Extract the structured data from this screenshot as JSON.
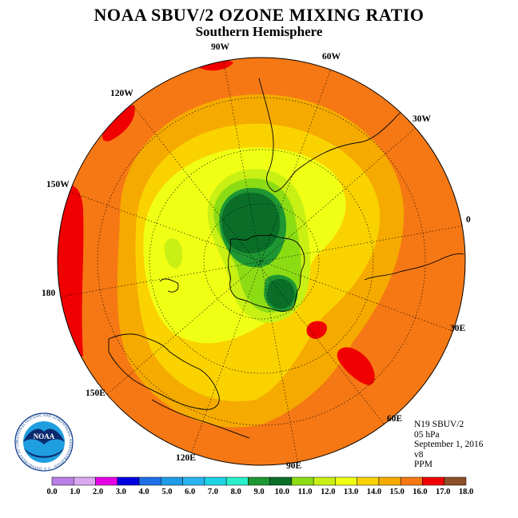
{
  "title": "NOAA SBUV/2 OZONE MIXING RATIO",
  "subtitle": "Southern Hemisphere",
  "info": {
    "satellite": "N19 SBUV/2",
    "level": "05 hPa",
    "date": "September 1, 2016",
    "version": "v8",
    "units": "PPM"
  },
  "logo": {
    "text": "NOAA",
    "ring_text": "NATIONAL OCEANIC AND ATMOSPHERIC ADMINISTRATION · U.S. DEPARTMENT OF COMMERCE"
  },
  "longitude_labels": [
    "90W",
    "60W",
    "30W",
    "0",
    "30E",
    "60E",
    "90E",
    "120E",
    "150E",
    "180",
    "150W",
    "120W"
  ],
  "colorbar": {
    "labels": [
      "0.0",
      "1.0",
      "2.0",
      "3.0",
      "4.0",
      "5.0",
      "6.0",
      "7.0",
      "8.0",
      "9.0",
      "10.0",
      "11.0",
      "12.0",
      "13.0",
      "14.0",
      "15.0",
      "16.0",
      "17.0",
      "18.0"
    ],
    "colors": [
      "#b97fe6",
      "#d9a8ee",
      "#e600e6",
      "#0000e0",
      "#1e6ee6",
      "#1e9be6",
      "#28b4f0",
      "#1ed2e6",
      "#28f0c8",
      "#1e9632",
      "#0a6e28",
      "#8cdc14",
      "#c8f014",
      "#f0ff14",
      "#fad200",
      "#f5aa00",
      "#f57814",
      "#f00000",
      "#8c5028"
    ]
  },
  "colors": {
    "orange_dark": "#f57814",
    "orange": "#f5aa00",
    "gold": "#fad200",
    "yellow": "#f0ff14",
    "yellow_green": "#c8f014",
    "light_green": "#8cdc14",
    "green": "#1e9632",
    "dark_green": "#0a6e28",
    "red": "#f00000"
  }
}
